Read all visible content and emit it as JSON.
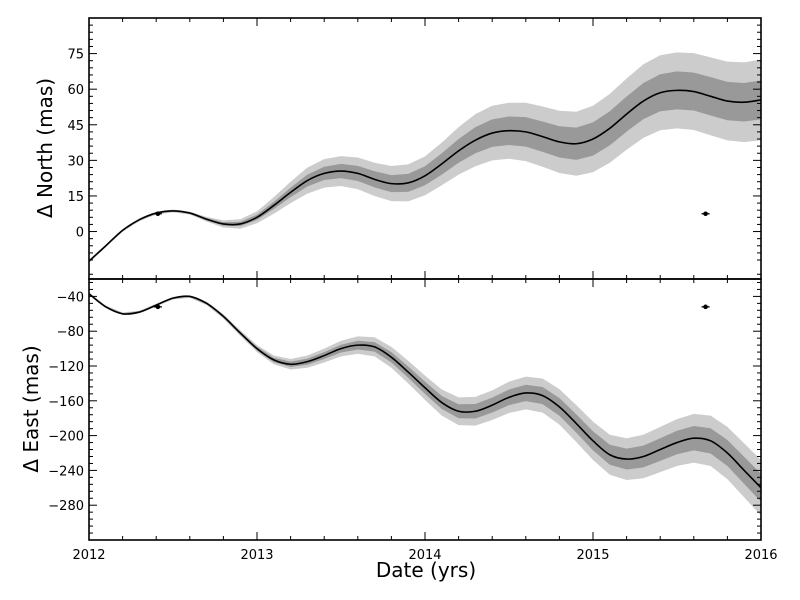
{
  "chart_data": [
    {
      "type": "line",
      "panel": "north",
      "ylabel": "Δ North (mas)",
      "xlabel": "",
      "xlim": [
        2012,
        2016
      ],
      "ylim": [
        -20,
        90
      ],
      "xticks": [
        2012,
        2013,
        2014,
        2015,
        2016
      ],
      "yticks": [
        0,
        15,
        30,
        45,
        60,
        75
      ],
      "ytick_labels": [
        "0",
        "15",
        "30",
        "45",
        "60",
        "75"
      ],
      "colors": {
        "outer_band": "#cccccc",
        "inner_band": "#999999",
        "line": "#000000"
      },
      "series": [
        {
          "x": [
            2012.0,
            2012.1,
            2012.2,
            2012.3,
            2012.4,
            2012.5,
            2012.6,
            2012.7,
            2012.8,
            2012.9,
            2013.0,
            2013.1,
            2013.2,
            2013.3,
            2013.4,
            2013.5,
            2013.6,
            2013.7,
            2013.8,
            2013.9,
            2014.0,
            2014.1,
            2014.2,
            2014.3,
            2014.4,
            2014.5,
            2014.6,
            2014.7,
            2014.8,
            2014.9,
            2015.0,
            2015.1,
            2015.2,
            2015.3,
            2015.4,
            2015.5,
            2015.6,
            2015.7,
            2015.8,
            2015.9,
            2016.0
          ],
          "y": [
            -12.5,
            -6,
            0.5,
            5,
            7.8,
            8.7,
            7.8,
            5.2,
            3.2,
            3.2,
            6,
            11,
            16.5,
            21.5,
            24.5,
            25.5,
            24.5,
            22,
            20.2,
            20.5,
            23.5,
            28.5,
            34,
            38.5,
            41.5,
            42.5,
            42,
            40,
            37.8,
            37,
            39,
            43.5,
            49.5,
            55,
            58.5,
            59.5,
            59,
            57,
            55,
            54.5,
            55.5
          ],
          "inner_half_width": [
            0.3,
            0.3,
            0.3,
            0.3,
            0.3,
            0.3,
            0.3,
            0.5,
            0.7,
            0.9,
            1.1,
            1.5,
            2,
            2.5,
            2.8,
            3,
            3.2,
            3.4,
            3.6,
            3.8,
            4,
            4.5,
            5,
            5.5,
            5.8,
            6,
            6.2,
            6.4,
            6.6,
            6.8,
            7,
            7.2,
            7.4,
            7.6,
            7.8,
            8,
            8,
            8.1,
            8.1,
            8.1,
            8.2
          ],
          "outer_half_width": [
            0.6,
            0.6,
            0.6,
            0.6,
            0.6,
            0.6,
            0.6,
            1,
            1.5,
            2,
            2.5,
            3.5,
            4.5,
            5.5,
            6,
            6.3,
            6.7,
            7,
            7.4,
            7.8,
            8.2,
            9,
            10,
            11,
            11.5,
            11.8,
            12.3,
            12.7,
            13.1,
            13.5,
            14,
            14.5,
            15,
            15.5,
            15.8,
            16,
            16.2,
            16.4,
            16.6,
            16.8,
            17
          ]
        }
      ],
      "data_points": [
        {
          "x": 2012.41,
          "y": 7.5
        },
        {
          "x": 2015.67,
          "y": 7.5
        }
      ]
    },
    {
      "type": "line",
      "panel": "east",
      "ylabel": "Δ East (mas)",
      "xlabel": "Date (yrs)",
      "xlim": [
        2012,
        2016
      ],
      "ylim": [
        -320,
        -20
      ],
      "xticks": [
        2012,
        2013,
        2014,
        2015,
        2016
      ],
      "xtick_labels": [
        "2012",
        "2013",
        "2014",
        "2015",
        "2016"
      ],
      "yticks": [
        -40,
        -80,
        -120,
        -160,
        -200,
        -240,
        -280
      ],
      "ytick_labels": [
        "−40",
        "−80",
        "−120",
        "−160",
        "−200",
        "−240",
        "−280"
      ],
      "colors": {
        "outer_band": "#cccccc",
        "inner_band": "#999999",
        "line": "#000000"
      },
      "series": [
        {
          "x": [
            2012.0,
            2012.1,
            2012.2,
            2012.3,
            2012.4,
            2012.5,
            2012.6,
            2012.7,
            2012.8,
            2012.9,
            2013.0,
            2013.1,
            2013.2,
            2013.3,
            2013.4,
            2013.5,
            2013.6,
            2013.7,
            2013.8,
            2013.9,
            2014.0,
            2014.1,
            2014.2,
            2014.3,
            2014.4,
            2014.5,
            2014.6,
            2014.7,
            2014.8,
            2014.9,
            2015.0,
            2015.1,
            2015.2,
            2015.3,
            2015.4,
            2015.5,
            2015.6,
            2015.7,
            2015.8,
            2015.9,
            2016.0
          ],
          "y": [
            -37,
            -52,
            -60,
            -58,
            -50,
            -42,
            -40,
            -48,
            -63,
            -82,
            -100,
            -113,
            -118,
            -115,
            -108,
            -100,
            -96,
            -98,
            -110,
            -127,
            -145,
            -162,
            -172,
            -172,
            -165,
            -156,
            -151,
            -154,
            -167,
            -186,
            -206,
            -222,
            -227,
            -224,
            -216,
            -208,
            -203,
            -206,
            -220,
            -240,
            -260
          ],
          "inner_half_width": [
            0.8,
            0.8,
            0.8,
            0.8,
            0.8,
            0.8,
            0.8,
            1,
            1.3,
            1.7,
            2,
            2.5,
            3,
            3.5,
            4,
            4.5,
            5,
            5.5,
            6,
            6.5,
            7,
            7.5,
            8,
            8.3,
            8.6,
            9,
            9.4,
            9.8,
            10.2,
            10.6,
            11,
            11.5,
            12,
            12.5,
            13,
            13.5,
            14,
            14.5,
            15,
            15.5,
            16
          ],
          "outer_half_width": [
            1.5,
            1.5,
            1.5,
            1.5,
            1.5,
            1.5,
            1.5,
            2,
            2.5,
            3.2,
            4,
            5,
            6,
            7,
            8,
            9,
            10,
            11,
            12,
            13,
            14,
            15,
            16,
            16.5,
            17,
            18,
            18.8,
            19.6,
            20.4,
            21.2,
            22,
            23,
            24,
            25,
            26,
            27,
            28,
            29,
            30,
            31,
            32
          ]
        }
      ],
      "data_points": [
        {
          "x": 2012.41,
          "y": -52
        },
        {
          "x": 2015.67,
          "y": -52
        }
      ]
    }
  ]
}
